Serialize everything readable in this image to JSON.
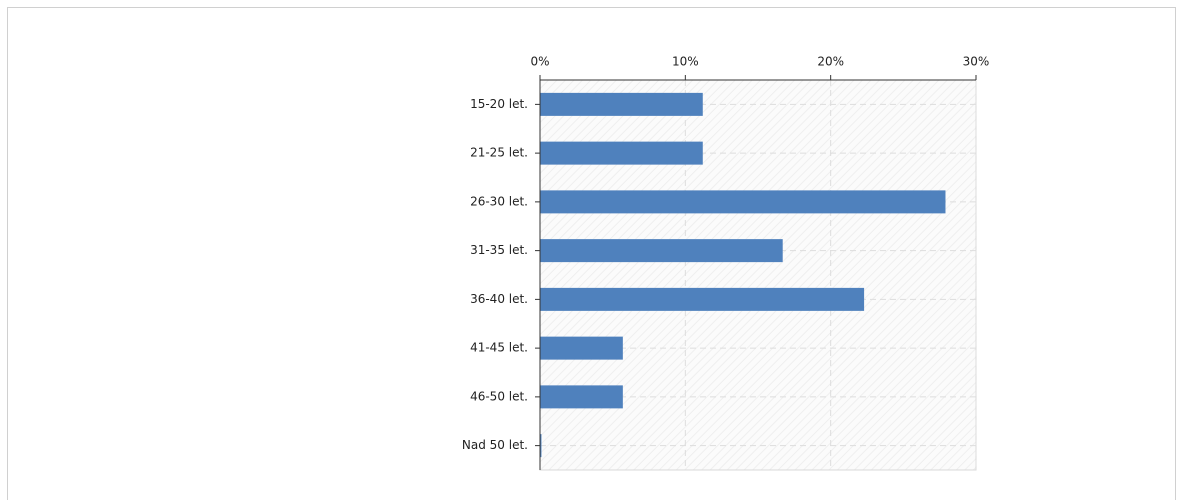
{
  "chart_data": {
    "type": "hbar",
    "categories": [
      "15-20 let.",
      "21-25 let.",
      "26-30 let.",
      "31-35 let.",
      "36-40 let.",
      "41-45 let.",
      "46-50 let.",
      "Nad 50 let."
    ],
    "values": [
      11.2,
      11.2,
      27.9,
      16.7,
      22.3,
      5.7,
      5.7,
      0.1
    ],
    "color": "#4f81bd",
    "xlim": [
      0,
      30
    ],
    "xticks": [
      {
        "value": 0,
        "label": "0%"
      },
      {
        "value": 10,
        "label": "10%"
      },
      {
        "value": 20,
        "label": "20%"
      },
      {
        "value": 30,
        "label": "30%"
      }
    ],
    "grid": true
  }
}
